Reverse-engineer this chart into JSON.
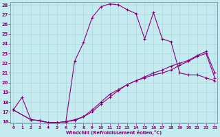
{
  "xlabel": "Windchill (Refroidissement éolien,°C)",
  "bg_color": "#c5eaf0",
  "line_color": "#880077",
  "xlim": [
    0,
    23
  ],
  "ylim": [
    16,
    28
  ],
  "xticks": [
    0,
    1,
    2,
    3,
    4,
    5,
    6,
    7,
    8,
    9,
    10,
    11,
    12,
    13,
    14,
    15,
    16,
    17,
    18,
    19,
    20,
    21,
    22,
    23
  ],
  "yticks": [
    16,
    17,
    18,
    19,
    20,
    21,
    22,
    23,
    24,
    25,
    26,
    27,
    28
  ],
  "curve1_x": [
    0,
    1,
    2,
    3,
    4,
    5,
    6,
    7,
    8,
    9,
    10,
    11,
    12,
    13,
    14,
    15,
    16,
    17,
    18,
    19,
    20,
    21,
    22,
    23
  ],
  "curve1_y": [
    17.2,
    18.5,
    16.2,
    16.1,
    15.9,
    15.9,
    16.0,
    22.2,
    24.1,
    26.7,
    27.8,
    28.1,
    28.0,
    27.5,
    27.1,
    24.5,
    27.2,
    24.5,
    24.2,
    21.0,
    20.8,
    20.8,
    20.5,
    20.2
  ],
  "curve2_x": [
    0,
    2,
    3,
    4,
    5,
    6,
    7,
    8,
    9,
    10,
    11,
    12,
    13,
    14,
    15,
    16,
    17,
    18,
    19,
    20,
    21,
    22,
    23
  ],
  "curve2_y": [
    17.2,
    16.2,
    16.1,
    15.9,
    15.9,
    16.0,
    16.1,
    16.5,
    17.0,
    17.8,
    18.5,
    19.2,
    19.8,
    20.2,
    20.5,
    20.8,
    21.0,
    21.3,
    21.8,
    22.2,
    22.7,
    23.0,
    20.5
  ],
  "curve3_x": [
    0,
    2,
    3,
    4,
    5,
    6,
    7,
    8,
    9,
    10,
    11,
    12,
    13,
    14,
    15,
    16,
    17,
    18,
    19,
    20,
    21,
    22,
    23
  ],
  "curve3_y": [
    17.2,
    16.2,
    16.1,
    15.9,
    15.9,
    16.0,
    16.2,
    16.5,
    17.2,
    18.0,
    18.8,
    19.3,
    19.8,
    20.2,
    20.6,
    21.0,
    21.3,
    21.7,
    22.0,
    22.3,
    22.8,
    23.2,
    21.0
  ],
  "grid_color": "#a8d8dc"
}
